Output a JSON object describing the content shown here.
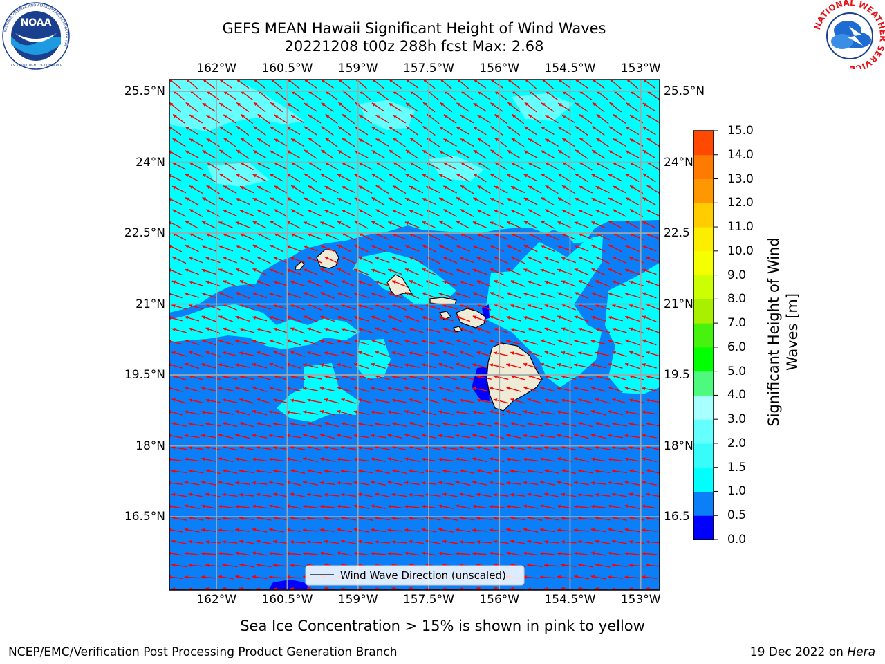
{
  "title": {
    "line1": "GEFS MEAN Hawaii Significant Height of Wind Waves",
    "line2": "20221208 t00z 288h fcst   Max: 2.68"
  },
  "logos": {
    "left": {
      "name": "NOAA",
      "ring_text": "NATIONAL OCEANIC AND ATMOSPHERIC ADMINISTRATION",
      "bottom_text": "U.S. DEPARTMENT OF COMMERCE"
    },
    "right": {
      "ring_text": "NATIONAL WEATHER SERVICE"
    }
  },
  "map": {
    "lon_labels": [
      "162°W",
      "160.5°W",
      "159°W",
      "157.5°W",
      "156°W",
      "154.5°W",
      "153°W"
    ],
    "lon_values": [
      -162,
      -160.5,
      -159,
      -157.5,
      -156,
      -154.5,
      -153
    ],
    "lat_labels": [
      "25.5°N",
      "24°N",
      "22.5°N",
      "21°N",
      "19.5°N",
      "18°N",
      "16.5°N"
    ],
    "lat_labels_right": [
      "25.5°N",
      "24°N",
      "22.5",
      "21°N",
      "19.5",
      "18°N",
      "16.5"
    ],
    "lat_values": [
      25.5,
      24,
      22.5,
      21,
      19.5,
      18,
      16.5
    ],
    "lon_range": [
      -163,
      -152.6
    ],
    "lat_range": [
      14.95,
      25.75
    ],
    "legend_label": "Wind Wave Direction (unscaled)",
    "arrow_color": "#ff0000",
    "grid": true
  },
  "colorbar": {
    "label_line1": "Significant Height of Wind",
    "label_line2": "Waves [m]",
    "ticks": [
      "0.0",
      "0.5",
      "1.0",
      "1.5",
      "2.0",
      "3.0",
      "4.0",
      "5.0",
      "6.0",
      "7.0",
      "8.0",
      "9.0",
      "10.0",
      "11.0",
      "12.0",
      "13.0",
      "14.0",
      "15.0"
    ],
    "colors": [
      "#0000ff",
      "#0b7ff7",
      "#00ffff",
      "#38fcfa",
      "#66ffff",
      "#a8ffff",
      "#4dfa7d",
      "#00ff00",
      "#48f20f",
      "#a8ef00",
      "#ccff00",
      "#f5ff00",
      "#fdee00",
      "#ffcc00",
      "#ff9800",
      "#ff7a00",
      "#ff4800",
      "#ff0000"
    ]
  },
  "footer": {
    "caption": "Sea Ice Concentration > 15% is shown in pink to yellow",
    "left": "NCEP/EMC/Verification Post Processing Product Generation Branch",
    "right_date": "19 Dec 2022 on ",
    "right_machine": "Hera"
  }
}
